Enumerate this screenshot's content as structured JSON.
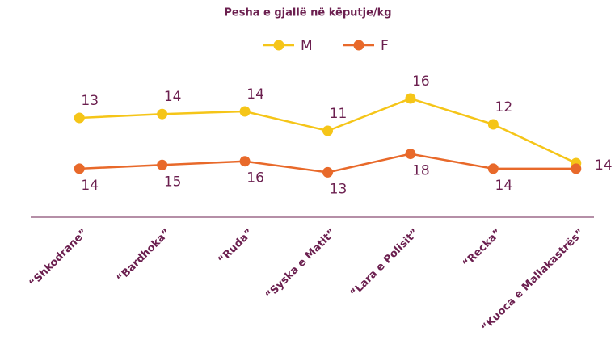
{
  "chart_data": {
    "type": "line",
    "title": "Pesha e gjallë në këputje/kg",
    "categories": [
      "“Shkodrane”",
      "“Bardhoka”",
      "“Ruda”",
      "“Syska e Matit”",
      "“Lara e Polisit”",
      "“Recka”",
      "“Kuoca e Mallakastrës”"
    ],
    "series": [
      {
        "name": "M",
        "color": "#f5c518",
        "values": [
          13,
          13.6,
          14,
          11,
          16,
          12,
          6
        ],
        "value_labels": [
          "13",
          "14",
          "14",
          "11",
          "16",
          "12",
          null
        ]
      },
      {
        "name": "F",
        "color": "#e8692a",
        "axis": "y2",
        "values": [
          14,
          15,
          16,
          13,
          18,
          14,
          14
        ]
      }
    ],
    "ylim": [
      0,
      20
    ],
    "y2lim": [
      5,
      40
    ],
    "legend": "top"
  }
}
